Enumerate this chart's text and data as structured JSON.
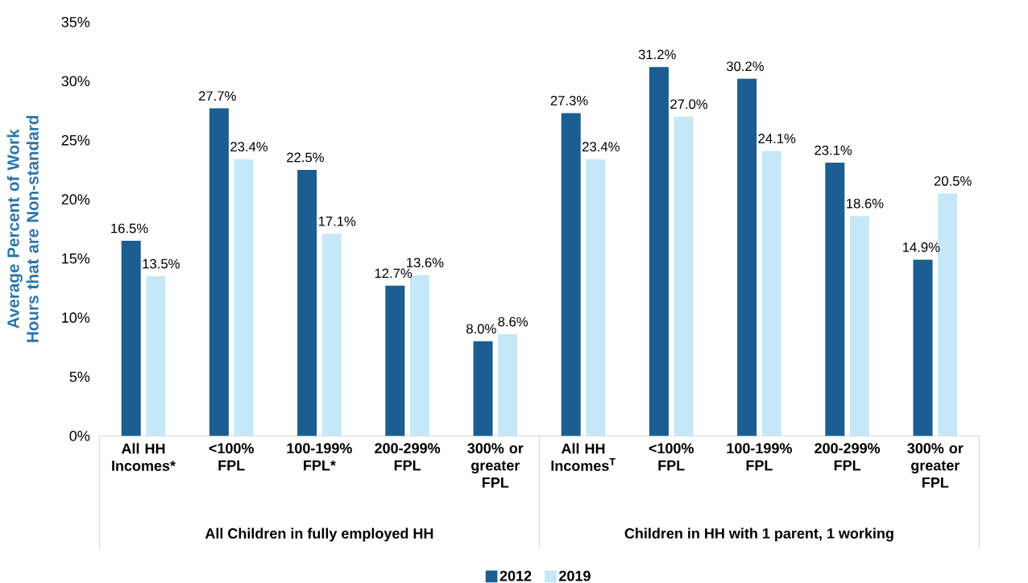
{
  "chart_data": {
    "type": "bar",
    "ylabel": "Average Percent of Work Hours that are Non-standard",
    "categories": [
      "All HH Incomes*",
      "<100% FPL",
      "100-199% FPL*",
      "200-299% FPL",
      "300% or greater FPL",
      "All HH Incomes$^{T}$",
      "<100% FPL",
      "100-199% FPL",
      "200-299% FPL",
      "300% or greater FPL"
    ],
    "series": [
      {
        "name": "2012",
        "color": "#1b5e91",
        "values": [
          16.5,
          27.7,
          22.5,
          12.7,
          8.0,
          27.3,
          31.2,
          30.2,
          23.1,
          14.9
        ],
        "value_labels": [
          "16.5%",
          "27.7%",
          "22.5%",
          "12.7%",
          "8.0%",
          "27.3%",
          "31.2%",
          "30.2%",
          "23.1%",
          "14.9%"
        ]
      },
      {
        "name": "2019",
        "color": "#c5e8f7",
        "values": [
          13.5,
          23.4,
          17.1,
          13.6,
          8.6,
          23.4,
          27.0,
          24.1,
          18.6,
          20.5
        ],
        "value_labels": [
          "13.5%",
          "23.4%",
          "17.1%",
          "13.6%",
          "8.6%",
          "23.4%",
          "27.0%",
          "24.1%",
          "18.6%",
          "20.5%"
        ]
      }
    ],
    "annotations": [
      "All Children in fully employed HH",
      "Children in HH with 1 parent, 1 working"
    ],
    "ylim": [
      0,
      35
    ],
    "yticks": [
      {
        "value": 0,
        "label": "0%"
      },
      {
        "value": 5,
        "label": "5%"
      },
      {
        "value": 10,
        "label": "10%"
      },
      {
        "value": 15,
        "label": "15%"
      },
      {
        "value": 20,
        "label": "20%"
      },
      {
        "value": 25,
        "label": "25%"
      },
      {
        "value": 30,
        "label": "30%"
      },
      {
        "value": 35,
        "label": "35%"
      }
    ],
    "legend": "bottom"
  }
}
